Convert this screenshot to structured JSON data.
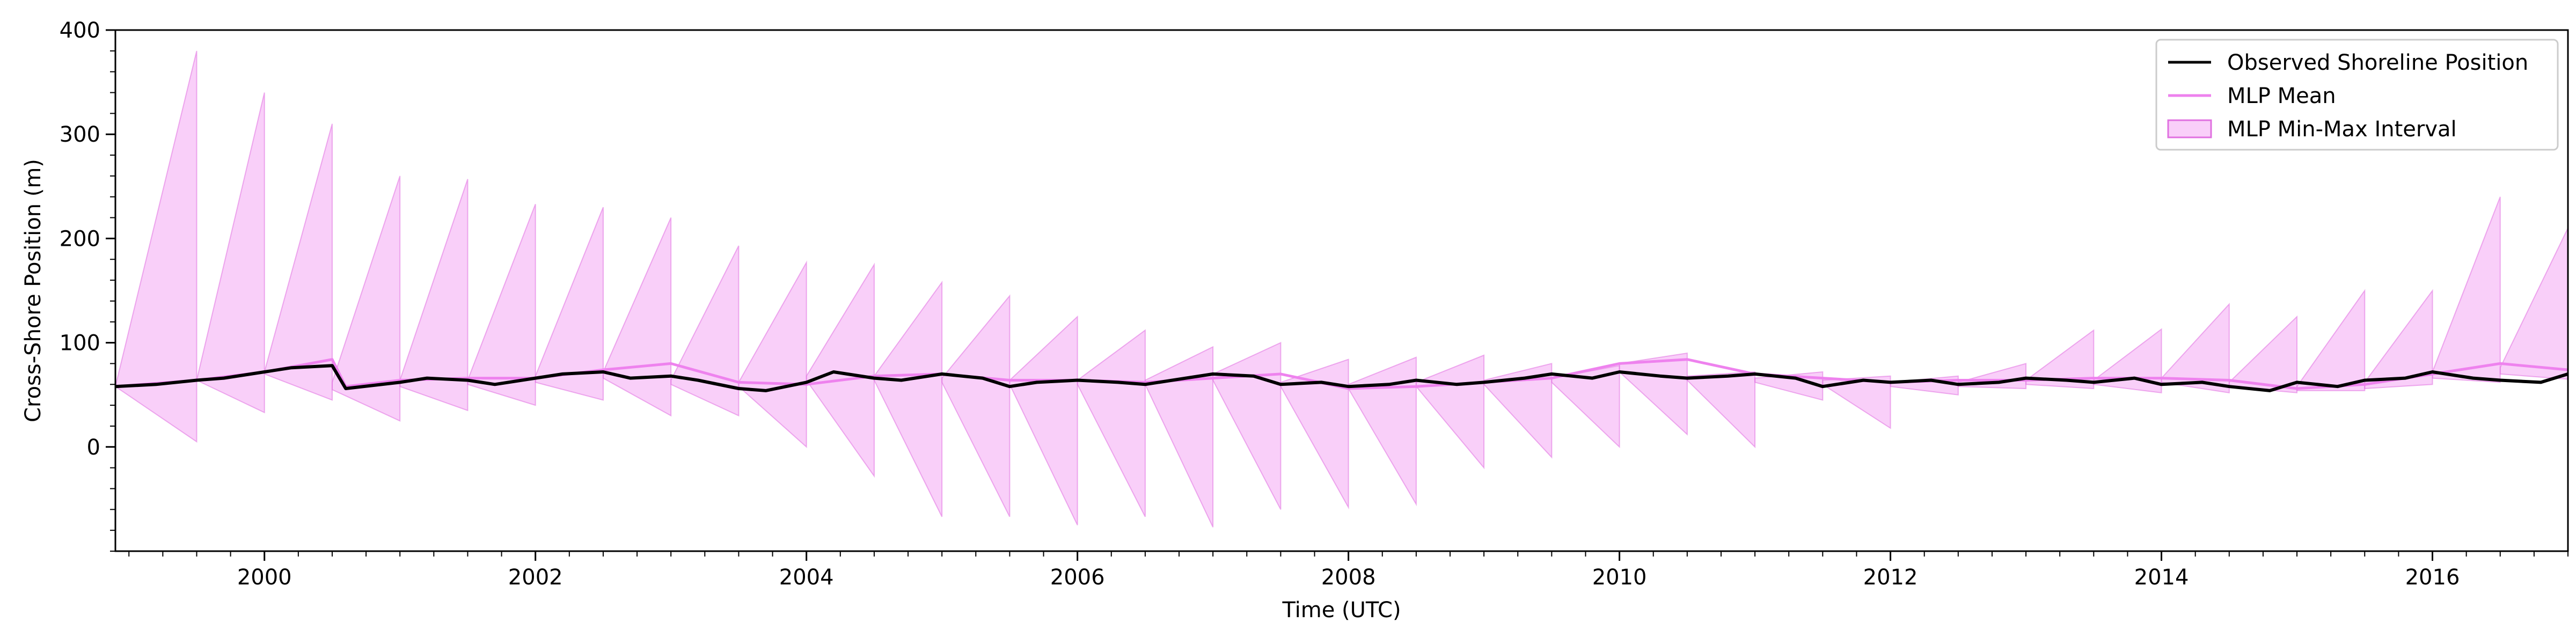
{
  "chart_data": {
    "type": "line",
    "title": "",
    "xlabel": "Time (UTC)",
    "ylabel": "Cross-Shore Position (m)",
    "xlim": [
      1998.9,
      2017.0
    ],
    "ylim": [
      -100,
      400
    ],
    "x_ticks": [
      "2000",
      "2002",
      "2004",
      "2006",
      "2008",
      "2010",
      "2012",
      "2014",
      "2016"
    ],
    "y_ticks": [
      "0",
      "100",
      "200",
      "300",
      "400"
    ],
    "grid": false,
    "legend_position": "top-right",
    "colors": {
      "observed": "#000000",
      "mlp_mean": "#ee82ee",
      "mlp_band_fill": "#ee82ee",
      "mlp_band_edge": "#e070e0"
    },
    "legend": [
      {
        "key": "observed",
        "label": "Observed Shoreline Position"
      },
      {
        "key": "mlp_mean",
        "label": "MLP Mean"
      },
      {
        "key": "mlp_band",
        "label": "MLP Min-Max Interval"
      }
    ],
    "series": [
      {
        "name": "Observed Shoreline Position",
        "x": [
          1998.9,
          1999.2,
          1999.5,
          1999.7,
          2000.0,
          2000.2,
          2000.5,
          2000.6,
          2001.0,
          2001.2,
          2001.5,
          2001.7,
          2002.0,
          2002.2,
          2002.5,
          2002.7,
          2003.0,
          2003.2,
          2003.5,
          2003.7,
          2004.0,
          2004.2,
          2004.5,
          2004.7,
          2005.0,
          2005.3,
          2005.5,
          2005.7,
          2006.0,
          2006.3,
          2006.5,
          2006.8,
          2007.0,
          2007.3,
          2007.5,
          2007.8,
          2008.0,
          2008.3,
          2008.5,
          2008.8,
          2009.0,
          2009.3,
          2009.5,
          2009.8,
          2010.0,
          2010.3,
          2010.5,
          2010.8,
          2011.0,
          2011.3,
          2011.5,
          2011.8,
          2012.0,
          2012.3,
          2012.5,
          2012.8,
          2013.0,
          2013.3,
          2013.5,
          2013.8,
          2014.0,
          2014.3,
          2014.5,
          2014.8,
          2015.0,
          2015.3,
          2015.5,
          2015.8,
          2016.0,
          2016.3,
          2016.5,
          2016.8,
          2017.0
        ],
        "y": [
          58,
          60,
          64,
          66,
          72,
          76,
          78,
          56,
          62,
          66,
          64,
          60,
          66,
          70,
          72,
          66,
          68,
          64,
          56,
          54,
          62,
          72,
          66,
          64,
          70,
          66,
          58,
          62,
          64,
          62,
          60,
          66,
          70,
          68,
          60,
          62,
          58,
          60,
          64,
          60,
          62,
          66,
          70,
          66,
          72,
          68,
          66,
          68,
          70,
          66,
          58,
          64,
          62,
          64,
          60,
          62,
          66,
          64,
          62,
          66,
          60,
          62,
          58,
          54,
          62,
          58,
          64,
          66,
          72,
          66,
          64,
          62,
          70
        ]
      },
      {
        "name": "MLP Mean",
        "x": [
          1998.9,
          1999.5,
          2000.0,
          2000.5,
          2000.6,
          2001.0,
          2001.5,
          2002.0,
          2002.5,
          2003.0,
          2003.5,
          2004.0,
          2004.5,
          2005.0,
          2005.5,
          2006.0,
          2006.5,
          2007.0,
          2007.5,
          2008.0,
          2008.5,
          2009.0,
          2009.5,
          2010.0,
          2010.5,
          2011.0,
          2011.5,
          2012.0,
          2012.5,
          2013.0,
          2013.5,
          2014.0,
          2014.5,
          2015.0,
          2015.5,
          2016.0,
          2016.5,
          2017.0
        ],
        "y": [
          58,
          64,
          72,
          84,
          58,
          64,
          66,
          66,
          74,
          80,
          62,
          60,
          68,
          70,
          64,
          64,
          62,
          66,
          70,
          56,
          58,
          62,
          66,
          80,
          84,
          70,
          66,
          62,
          64,
          64,
          66,
          66,
          64,
          56,
          60,
          70,
          80,
          74
        ]
      }
    ],
    "band": {
      "name": "MLP Min-Max Interval",
      "segments": [
        {
          "x0": 1998.9,
          "x1": 1999.5,
          "lower_start": 58,
          "lower_end": 5,
          "upper_start": 58,
          "upper_end": 380
        },
        {
          "x0": 1999.5,
          "x1": 2000.0,
          "lower_start": 64,
          "lower_end": 33,
          "upper_start": 64,
          "upper_end": 340
        },
        {
          "x0": 2000.0,
          "x1": 2000.5,
          "lower_start": 70,
          "lower_end": 45,
          "upper_start": 72,
          "upper_end": 310
        },
        {
          "x0": 2000.5,
          "x1": 2001.0,
          "lower_start": 55,
          "lower_end": 25,
          "upper_start": 62,
          "upper_end": 260
        },
        {
          "x0": 2001.0,
          "x1": 2001.5,
          "lower_start": 58,
          "lower_end": 35,
          "upper_start": 64,
          "upper_end": 257
        },
        {
          "x0": 2001.5,
          "x1": 2002.0,
          "lower_start": 60,
          "lower_end": 40,
          "upper_start": 64,
          "upper_end": 233
        },
        {
          "x0": 2002.0,
          "x1": 2002.5,
          "lower_start": 62,
          "lower_end": 45,
          "upper_start": 68,
          "upper_end": 230
        },
        {
          "x0": 2002.5,
          "x1": 2003.0,
          "lower_start": 66,
          "lower_end": 30,
          "upper_start": 72,
          "upper_end": 220
        },
        {
          "x0": 2003.0,
          "x1": 2003.5,
          "lower_start": 60,
          "lower_end": 30,
          "upper_start": 64,
          "upper_end": 193
        },
        {
          "x0": 2003.5,
          "x1": 2004.0,
          "lower_start": 58,
          "lower_end": 0,
          "upper_start": 62,
          "upper_end": 177
        },
        {
          "x0": 2004.0,
          "x1": 2004.5,
          "lower_start": 64,
          "lower_end": -28,
          "upper_start": 68,
          "upper_end": 175
        },
        {
          "x0": 2004.5,
          "x1": 2005.0,
          "lower_start": 64,
          "lower_end": -67,
          "upper_start": 68,
          "upper_end": 158
        },
        {
          "x0": 2005.0,
          "x1": 2005.5,
          "lower_start": 62,
          "lower_end": -67,
          "upper_start": 66,
          "upper_end": 145
        },
        {
          "x0": 2005.5,
          "x1": 2006.0,
          "lower_start": 60,
          "lower_end": -75,
          "upper_start": 64,
          "upper_end": 125
        },
        {
          "x0": 2006.0,
          "x1": 2006.5,
          "lower_start": 60,
          "lower_end": -67,
          "upper_start": 64,
          "upper_end": 112
        },
        {
          "x0": 2006.5,
          "x1": 2007.0,
          "lower_start": 60,
          "lower_end": -77,
          "upper_start": 64,
          "upper_end": 96
        },
        {
          "x0": 2007.0,
          "x1": 2007.5,
          "lower_start": 64,
          "lower_end": -60,
          "upper_start": 70,
          "upper_end": 100
        },
        {
          "x0": 2007.5,
          "x1": 2008.0,
          "lower_start": 58,
          "lower_end": -58,
          "upper_start": 62,
          "upper_end": 84
        },
        {
          "x0": 2008.0,
          "x1": 2008.5,
          "lower_start": 56,
          "lower_end": -55,
          "upper_start": 60,
          "upper_end": 86
        },
        {
          "x0": 2008.5,
          "x1": 2009.0,
          "lower_start": 58,
          "lower_end": -20,
          "upper_start": 62,
          "upper_end": 88
        },
        {
          "x0": 2009.0,
          "x1": 2009.5,
          "lower_start": 60,
          "lower_end": -10,
          "upper_start": 64,
          "upper_end": 80
        },
        {
          "x0": 2009.5,
          "x1": 2010.0,
          "lower_start": 62,
          "lower_end": 0,
          "upper_start": 66,
          "upper_end": 78
        },
        {
          "x0": 2010.0,
          "x1": 2010.5,
          "lower_start": 72,
          "lower_end": 12,
          "upper_start": 80,
          "upper_end": 90
        },
        {
          "x0": 2010.5,
          "x1": 2011.0,
          "lower_start": 64,
          "lower_end": 0,
          "upper_start": 68,
          "upper_end": 72
        },
        {
          "x0": 2011.0,
          "x1": 2011.5,
          "lower_start": 62,
          "lower_end": 45,
          "upper_start": 66,
          "upper_end": 72
        },
        {
          "x0": 2011.5,
          "x1": 2012.0,
          "lower_start": 60,
          "lower_end": 18,
          "upper_start": 64,
          "upper_end": 68
        },
        {
          "x0": 2012.0,
          "x1": 2012.5,
          "lower_start": 58,
          "lower_end": 50,
          "upper_start": 62,
          "upper_end": 68
        },
        {
          "x0": 2012.5,
          "x1": 2013.0,
          "lower_start": 58,
          "lower_end": 56,
          "upper_start": 62,
          "upper_end": 80
        },
        {
          "x0": 2013.0,
          "x1": 2013.5,
          "lower_start": 60,
          "lower_end": 56,
          "upper_start": 64,
          "upper_end": 112
        },
        {
          "x0": 2013.5,
          "x1": 2014.0,
          "lower_start": 60,
          "lower_end": 52,
          "upper_start": 64,
          "upper_end": 113
        },
        {
          "x0": 2014.0,
          "x1": 2014.5,
          "lower_start": 62,
          "lower_end": 52,
          "upper_start": 66,
          "upper_end": 137
        },
        {
          "x0": 2014.5,
          "x1": 2015.0,
          "lower_start": 58,
          "lower_end": 52,
          "upper_start": 62,
          "upper_end": 125
        },
        {
          "x0": 2015.0,
          "x1": 2015.5,
          "lower_start": 54,
          "lower_end": 54,
          "upper_start": 58,
          "upper_end": 150
        },
        {
          "x0": 2015.5,
          "x1": 2016.0,
          "lower_start": 56,
          "lower_end": 60,
          "upper_start": 62,
          "upper_end": 150
        },
        {
          "x0": 2016.0,
          "x1": 2016.5,
          "lower_start": 66,
          "lower_end": 62,
          "upper_start": 72,
          "upper_end": 240
        },
        {
          "x0": 2016.5,
          "x1": 2017.0,
          "lower_start": 70,
          "lower_end": 65,
          "upper_start": 76,
          "upper_end": 210
        }
      ]
    }
  }
}
